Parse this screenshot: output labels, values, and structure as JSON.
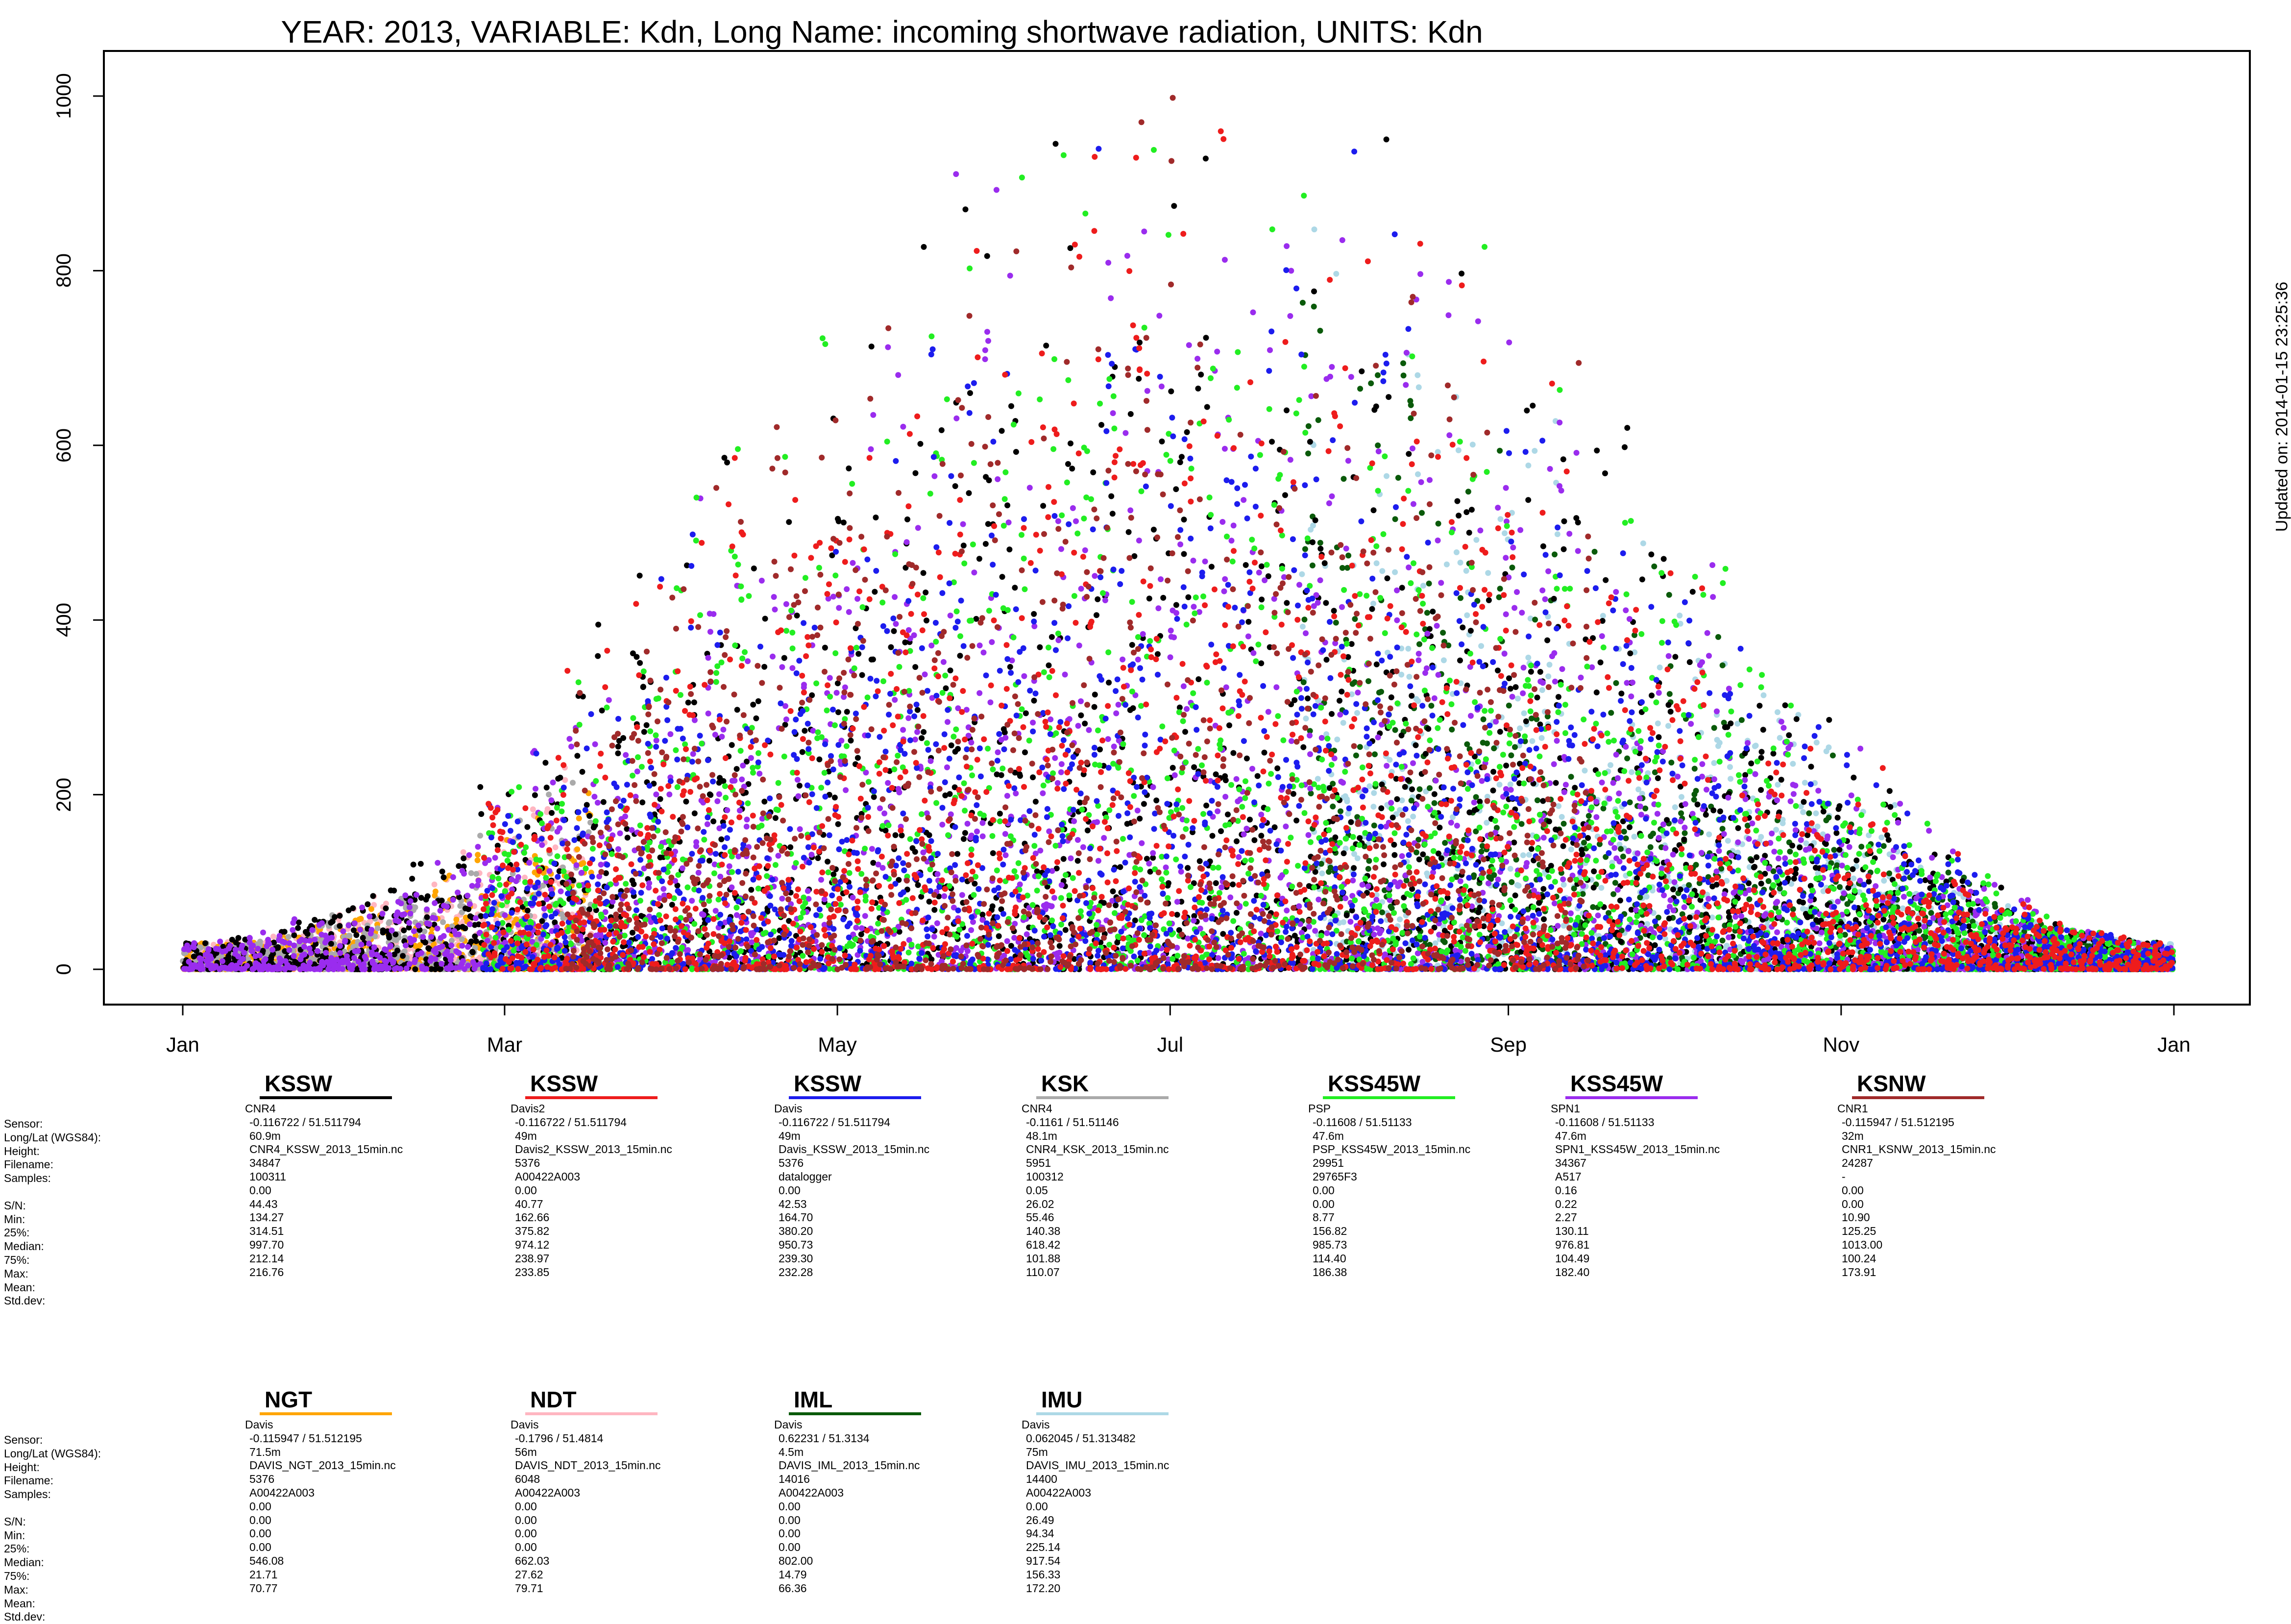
{
  "title": "YEAR: 2013, VARIABLE: Kdn, Long Name: incoming  shortwave  radiation, UNITS: Kdn",
  "updated": "Updated on: 2014-01-15 23:25:36",
  "row_labels": [
    "Sensor:",
    "Long/Lat (WGS84):",
    "Height:",
    "Filename:",
    "Samples:",
    "",
    "S/N:",
    "Min:",
    "25%:",
    "Median:",
    "75%:",
    "Max:",
    "Mean:",
    "Std.dev:"
  ],
  "chart_data": {
    "type": "scatter",
    "title": "YEAR: 2013, VARIABLE: Kdn, Long Name: incoming  shortwave  radiation, UNITS: Kdn",
    "xlabel": "",
    "ylabel": "",
    "xlim": [
      "2013-01-01",
      "2014-01-01"
    ],
    "ylim": [
      0,
      1050
    ],
    "x_ticks": [
      "Jan",
      "Mar",
      "May",
      "Jul",
      "Sep",
      "Nov",
      "Jan"
    ],
    "y_ticks": [
      0,
      200,
      400,
      600,
      800,
      1000
    ],
    "grid": false,
    "legend": "below-plot",
    "series": [
      {
        "name": "KSSW",
        "color": "#000000",
        "sensor": "CNR4",
        "lonlat": "-0.116722 / 51.511794",
        "height": "60.9m",
        "filename": "CNR4_KSSW_2013_15min.nc",
        "samples": "34847",
        "sn": "100311",
        "min": "0.00",
        "p25": "44.43",
        "median": "134.27",
        "p75": "314.51",
        "max": "997.70",
        "mean": "212.14",
        "sd": "216.76"
      },
      {
        "name": "KSSW",
        "color": "#ee1c1c",
        "sensor": "Davis2",
        "lonlat": "-0.116722 / 51.511794",
        "height": "49m",
        "filename": "Davis2_KSSW_2013_15min.nc",
        "samples": "5376",
        "sn": "A00422A003",
        "min": "0.00",
        "p25": "40.77",
        "median": "162.66",
        "p75": "375.82",
        "max": "974.12",
        "mean": "238.97",
        "sd": "233.85"
      },
      {
        "name": "KSSW",
        "color": "#1c1cee",
        "sensor": "Davis",
        "lonlat": "-0.116722 / 51.511794",
        "height": "49m",
        "filename": "Davis_KSSW_2013_15min.nc",
        "samples": "5376",
        "sn": "datalogger",
        "min": "0.00",
        "p25": "42.53",
        "median": "164.70",
        "p75": "380.20",
        "max": "950.73",
        "mean": "239.30",
        "sd": "232.28"
      },
      {
        "name": "KSK",
        "color": "#aaaaaa",
        "sensor": "CNR4",
        "lonlat": "-0.1161 / 51.51146",
        "height": "48.1m",
        "filename": "CNR4_KSK_2013_15min.nc",
        "samples": "5951",
        "sn": "100312",
        "min": "0.05",
        "p25": "26.02",
        "median": "55.46",
        "p75": "140.38",
        "max": "618.42",
        "mean": "101.88",
        "sd": "110.07"
      },
      {
        "name": "KSS45W",
        "color": "#22ee22",
        "sensor": "PSP",
        "lonlat": "-0.11608 / 51.51133",
        "height": "47.6m",
        "filename": "PSP_KSS45W_2013_15min.nc",
        "samples": "29951",
        "sn": "29765F3",
        "min": "0.00",
        "p25": "0.00",
        "median": "8.77",
        "p75": "156.82",
        "max": "985.73",
        "mean": "114.40",
        "sd": "186.38"
      },
      {
        "name": "KSS45W",
        "color": "#9a2cee",
        "sensor": "SPN1",
        "lonlat": "-0.11608 / 51.51133",
        "height": "47.6m",
        "filename": "SPN1_KSS45W_2013_15min.nc",
        "samples": "34367",
        "sn": "A517",
        "min": "0.16",
        "p25": "0.22",
        "median": "2.27",
        "p75": "130.11",
        "max": "976.81",
        "mean": "104.49",
        "sd": "182.40"
      },
      {
        "name": "KSNW",
        "color": "#a02a2a",
        "sensor": "CNR1",
        "lonlat": "-0.115947 / 51.512195",
        "height": "32m",
        "filename": "CNR1_KSNW_2013_15min.nc",
        "samples": "24287",
        "sn": "-",
        "min": "0.00",
        "p25": "0.00",
        "median": "10.90",
        "p75": "125.25",
        "max": "1013.00",
        "mean": "100.24",
        "sd": "173.91"
      },
      {
        "name": "NGT",
        "color": "#ffa500",
        "sensor": "Davis",
        "lonlat": "-0.115947 / 51.512195",
        "height": "71.5m",
        "filename": "DAVIS_NGT_2013_15min.nc",
        "samples": "5376",
        "sn": "A00422A003",
        "min": "0.00",
        "p25": "0.00",
        "median": "0.00",
        "p75": "0.00",
        "max": "546.08",
        "mean": "21.71",
        "sd": "70.77"
      },
      {
        "name": "NDT",
        "color": "#ffb6c1",
        "sensor": "Davis",
        "lonlat": "-0.1796 / 51.4814",
        "height": "56m",
        "filename": "DAVIS_NDT_2013_15min.nc",
        "samples": "6048",
        "sn": "A00422A003",
        "min": "0.00",
        "p25": "0.00",
        "median": "0.00",
        "p75": "0.00",
        "max": "662.03",
        "mean": "27.62",
        "sd": "79.71"
      },
      {
        "name": "IML",
        "color": "#0a5a0a",
        "sensor": "Davis",
        "lonlat": "0.62231 / 51.3134",
        "height": "4.5m",
        "filename": "DAVIS_IML_2013_15min.nc",
        "samples": "14016",
        "sn": "A00422A003",
        "min": "0.00",
        "p25": "0.00",
        "median": "0.00",
        "p75": "0.00",
        "max": "802.00",
        "mean": "14.79",
        "sd": "66.36"
      },
      {
        "name": "IMU",
        "color": "#add8e6",
        "sensor": "Davis",
        "lonlat": "0.062045 / 51.313482",
        "height": "75m",
        "filename": "DAVIS_IMU_2013_15min.nc",
        "samples": "14400",
        "sn": "A00422A003",
        "min": "0.00",
        "p25": "26.49",
        "median": "94.34",
        "p75": "225.14",
        "max": "917.54",
        "mean": "156.33",
        "sd": "172.20"
      }
    ]
  }
}
